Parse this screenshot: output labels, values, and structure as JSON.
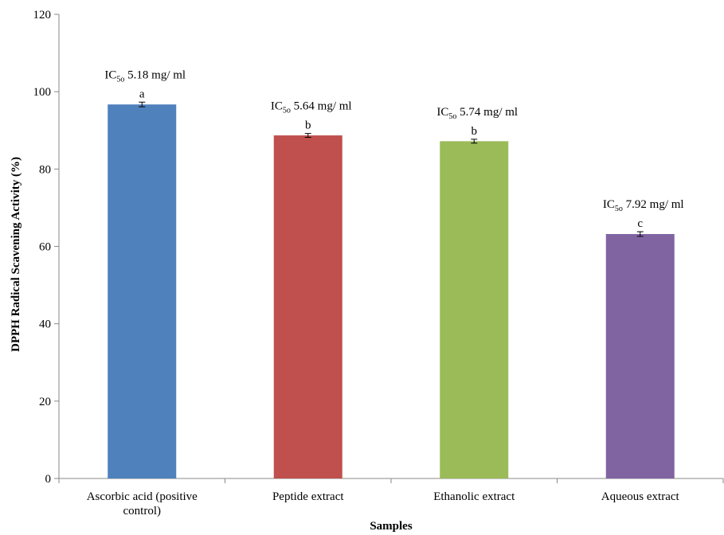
{
  "chart_data": {
    "type": "bar",
    "categories": [
      "Ascorbic acid (positive control)",
      "Peptide extract",
      "Ethanolic extract",
      "Aqueous extract"
    ],
    "category_lines": [
      [
        "Ascorbic acid (positive",
        "control)"
      ],
      [
        "Peptide extract"
      ],
      [
        "Ethanolic extract"
      ],
      [
        "Aqueous extract"
      ]
    ],
    "values": [
      96.7,
      88.7,
      87.2,
      63.2
    ],
    "errors": [
      0.6,
      0.5,
      0.5,
      0.6
    ],
    "colors": [
      "#4F81BD",
      "#C0504D",
      "#9BBB59",
      "#8064A2"
    ],
    "letters": [
      "a",
      "b",
      "b",
      "c"
    ],
    "annotations": [
      {
        "prefix": "IC",
        "sub": "5o",
        "value": "5.18 mg/ ml"
      },
      {
        "prefix": "IC",
        "sub": "5o",
        "value": "5.64 mg/ ml"
      },
      {
        "prefix": "IC",
        "sub": "5o",
        "value": "5.74 mg/ ml"
      },
      {
        "prefix": "IC",
        "sub": "5o",
        "value": "7.92 mg/ ml"
      }
    ],
    "ylim": [
      0,
      120
    ],
    "yticks": [
      0,
      20,
      40,
      60,
      80,
      100,
      120
    ],
    "ylabel": "DPPH Radical Scavening Activity (%)",
    "xlabel": "Samples",
    "grid": false
  }
}
